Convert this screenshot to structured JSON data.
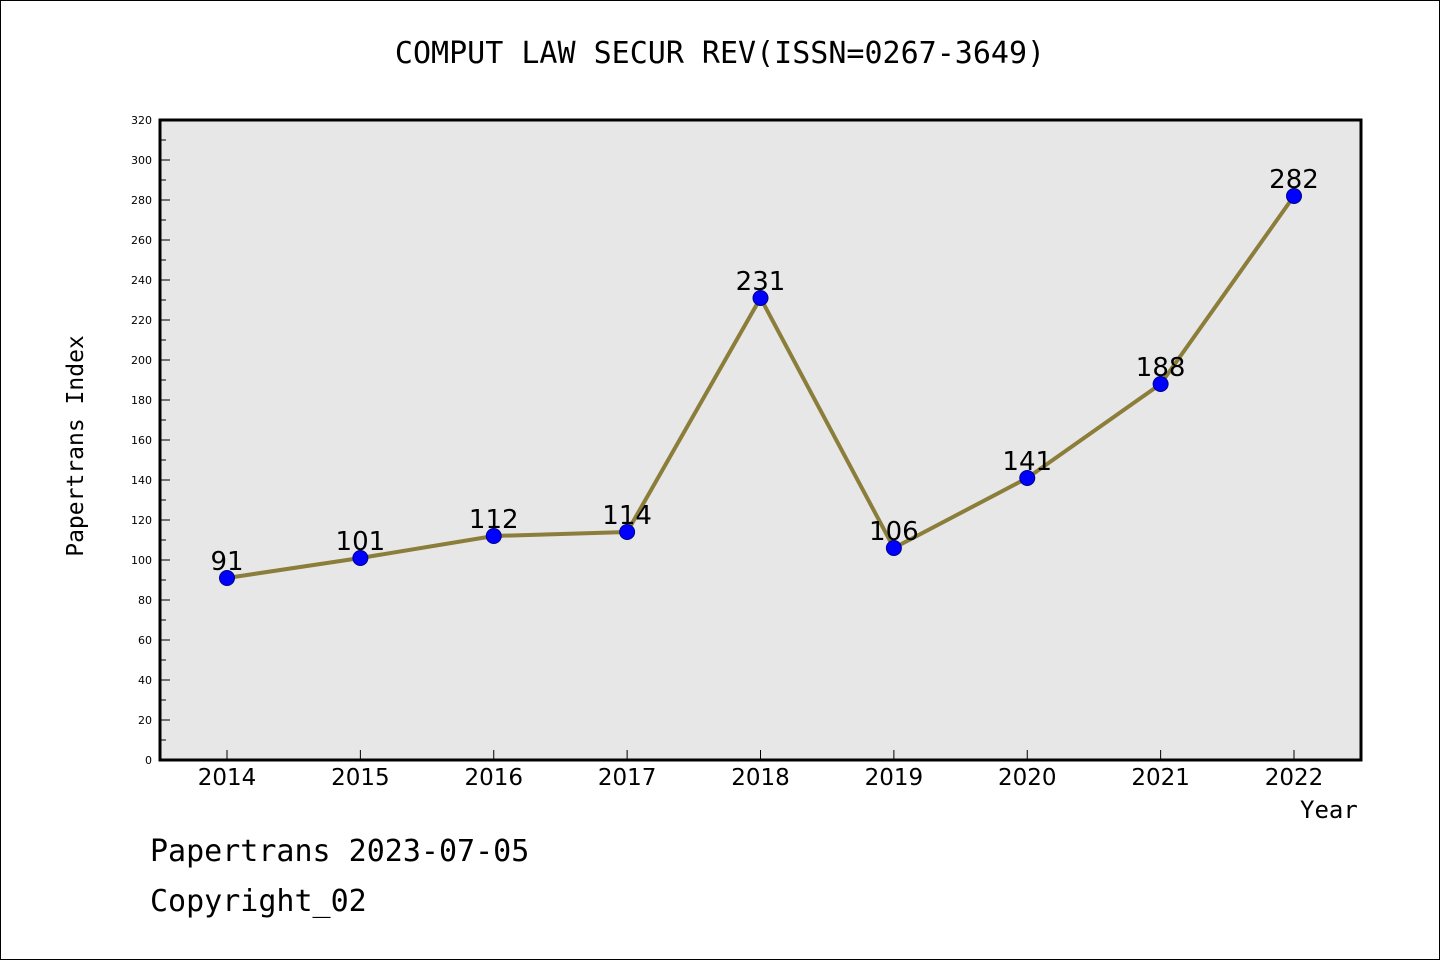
{
  "chart_data": {
    "type": "line",
    "title": "COMPUT LAW SECUR REV(ISSN=0267-3649)",
    "xlabel": "Year",
    "ylabel": "Papertrans Index",
    "x": [
      "2014",
      "2015",
      "2016",
      "2017",
      "2018",
      "2019",
      "2020",
      "2021",
      "2022"
    ],
    "series": [
      {
        "values": [
          91,
          101,
          112,
          114,
          231,
          106,
          141,
          188,
          282
        ]
      }
    ],
    "ylim": [
      0,
      320
    ],
    "yticks": [
      0,
      20,
      40,
      60,
      80,
      100,
      120,
      140,
      160,
      180,
      200,
      220,
      240,
      260,
      280,
      300,
      320
    ],
    "grid": false,
    "data_labels": true,
    "colors": {
      "line": "#8b7d3a",
      "marker": "#0000ff",
      "plot_background": "#e7e7e7"
    }
  },
  "footer": {
    "line1": "Papertrans 2023-07-05",
    "line2": "Copyright_02"
  }
}
